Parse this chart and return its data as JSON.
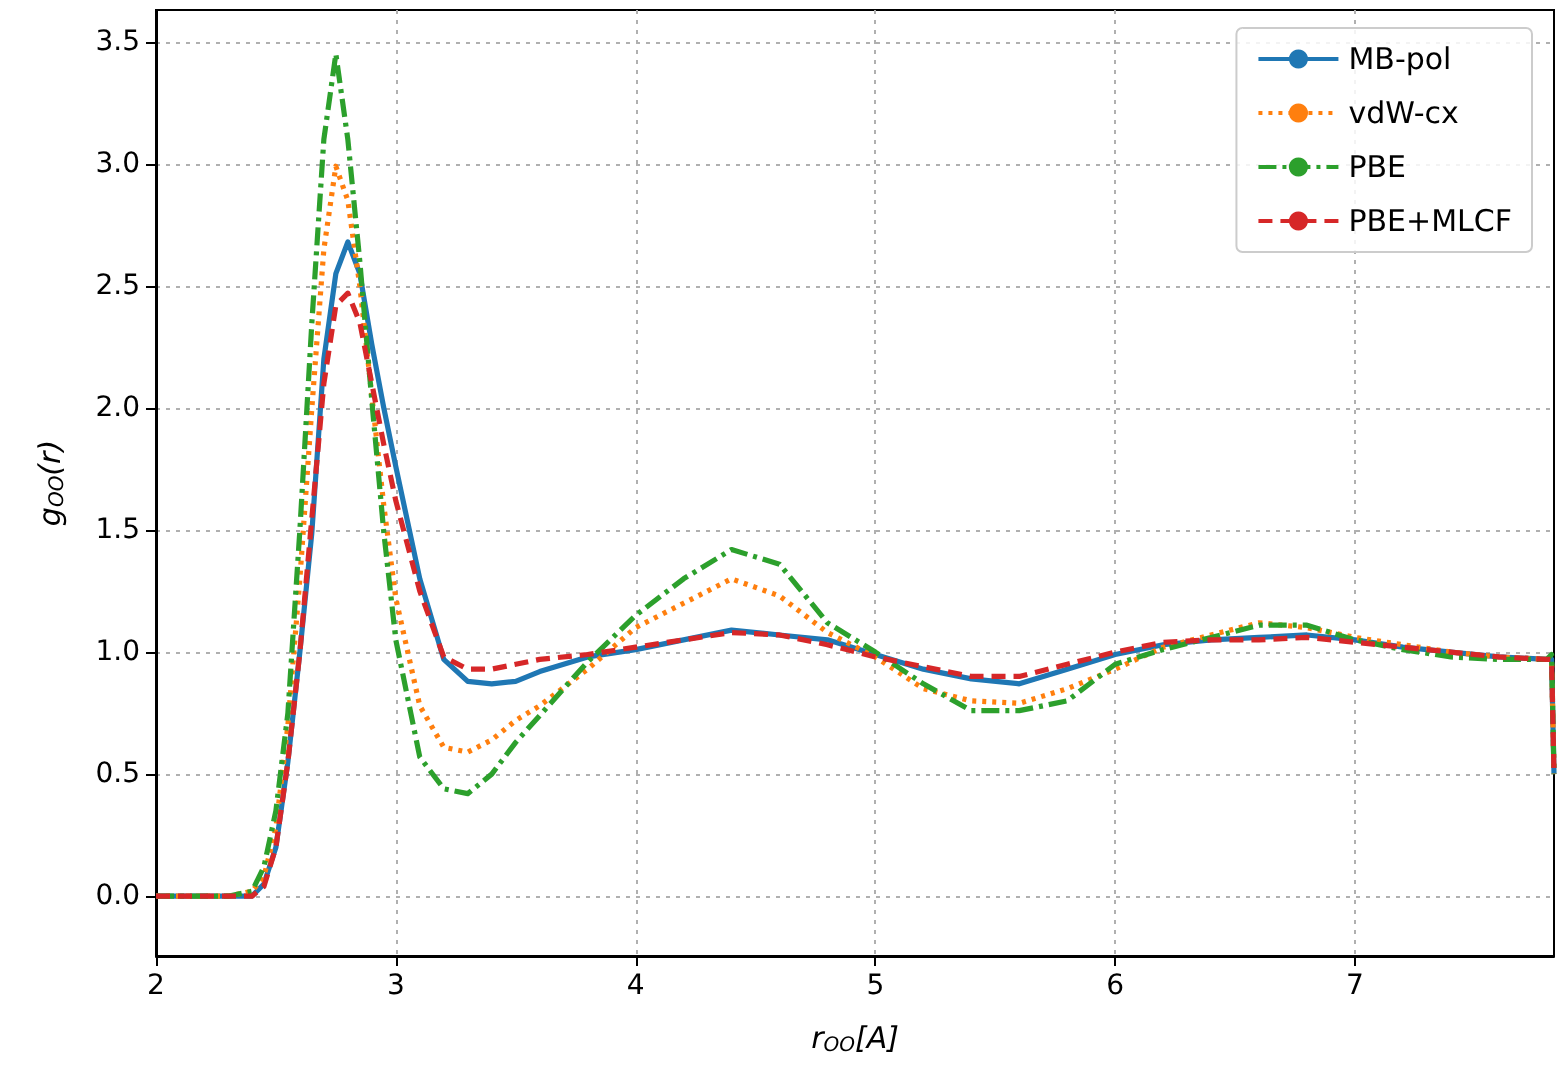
{
  "chart_data": {
    "type": "line",
    "xlabel": "r$_{OO}$[A]",
    "ylabel": "g$_{OO}$(r)",
    "x": [
      2,
      2.3,
      2.4,
      2.45,
      2.5,
      2.55,
      2.6,
      2.65,
      2.7,
      2.75,
      2.8,
      2.85,
      2.9,
      2.95,
      3.0,
      3.1,
      3.2,
      3.3,
      3.4,
      3.5,
      3.6,
      3.8,
      4.0,
      4.2,
      4.4,
      4.6,
      4.8,
      5.0,
      5.2,
      5.4,
      5.6,
      5.8,
      6.0,
      6.2,
      6.4,
      6.6,
      6.8,
      7.0,
      7.2,
      7.4,
      7.6,
      7.8,
      7.82,
      7.83
    ],
    "series": [
      {
        "name": "MB-pol",
        "color": "#1f77b4",
        "line_style": "solid",
        "values": [
          0,
          0,
          0,
          0.05,
          0.2,
          0.55,
          1.0,
          1.49,
          2.2,
          2.55,
          2.68,
          2.55,
          2.26,
          2.0,
          1.76,
          1.3,
          0.97,
          0.88,
          0.87,
          0.88,
          0.92,
          0.98,
          1.01,
          1.05,
          1.09,
          1.07,
          1.05,
          0.99,
          0.93,
          0.89,
          0.87,
          0.93,
          0.99,
          1.03,
          1.05,
          1.06,
          1.07,
          1.05,
          1.02,
          1.0,
          0.98,
          0.97,
          0.97,
          0.5
        ]
      },
      {
        "name": "vdW-cx",
        "color": "#ff7f0e",
        "line_style": "dotted",
        "values": [
          0,
          0,
          0.02,
          0.08,
          0.28,
          0.7,
          1.3,
          2.0,
          2.65,
          2.99,
          2.85,
          2.5,
          2.05,
          1.6,
          1.22,
          0.78,
          0.61,
          0.59,
          0.64,
          0.72,
          0.78,
          0.93,
          1.1,
          1.2,
          1.3,
          1.23,
          1.08,
          0.98,
          0.85,
          0.8,
          0.79,
          0.85,
          0.93,
          1.02,
          1.07,
          1.12,
          1.1,
          1.06,
          1.03,
          1.0,
          0.98,
          0.97,
          0.97,
          0.5
        ]
      },
      {
        "name": "PBE",
        "color": "#2ca02c",
        "line_style": "dashdot",
        "values": [
          0,
          0,
          0.02,
          0.12,
          0.35,
          0.75,
          1.5,
          2.35,
          3.1,
          3.45,
          3.1,
          2.6,
          2.03,
          1.49,
          1.05,
          0.57,
          0.44,
          0.42,
          0.5,
          0.63,
          0.74,
          0.96,
          1.15,
          1.3,
          1.42,
          1.36,
          1.12,
          1.0,
          0.87,
          0.76,
          0.76,
          0.8,
          0.95,
          1.01,
          1.06,
          1.11,
          1.11,
          1.05,
          1.01,
          0.98,
          0.97,
          0.97,
          0.99,
          0.5
        ]
      },
      {
        "name": "PBE+MLCF",
        "color": "#d62728",
        "line_style": "dashed",
        "values": [
          0,
          0,
          0,
          0.04,
          0.2,
          0.55,
          1.0,
          1.55,
          2.1,
          2.42,
          2.47,
          2.35,
          2.1,
          1.85,
          1.62,
          1.25,
          0.98,
          0.93,
          0.93,
          0.95,
          0.97,
          0.99,
          1.02,
          1.05,
          1.08,
          1.07,
          1.03,
          0.98,
          0.94,
          0.9,
          0.9,
          0.95,
          1.0,
          1.04,
          1.05,
          1.05,
          1.06,
          1.04,
          1.02,
          1.0,
          0.98,
          0.97,
          0.97,
          0.5
        ]
      }
    ],
    "xlim": [
      2,
      7.83
    ],
    "xticks": [
      2,
      3,
      4,
      5,
      6,
      7
    ],
    "ylim": [
      -0.245,
      3.63
    ],
    "yticks": [
      {
        "value": 0,
        "label": "0.0"
      },
      {
        "value": 0.5,
        "label": "0.5"
      },
      {
        "value": 1,
        "label": "1.0"
      },
      {
        "value": 1.5,
        "label": "1.5"
      },
      {
        "value": 2,
        "label": "2.0"
      },
      {
        "value": 2.5,
        "label": "2.5"
      },
      {
        "value": 3,
        "label": "3.0"
      },
      {
        "value": 3.5,
        "label": "3.5"
      }
    ],
    "grid": true,
    "legend": "top right",
    "marker": "none"
  }
}
